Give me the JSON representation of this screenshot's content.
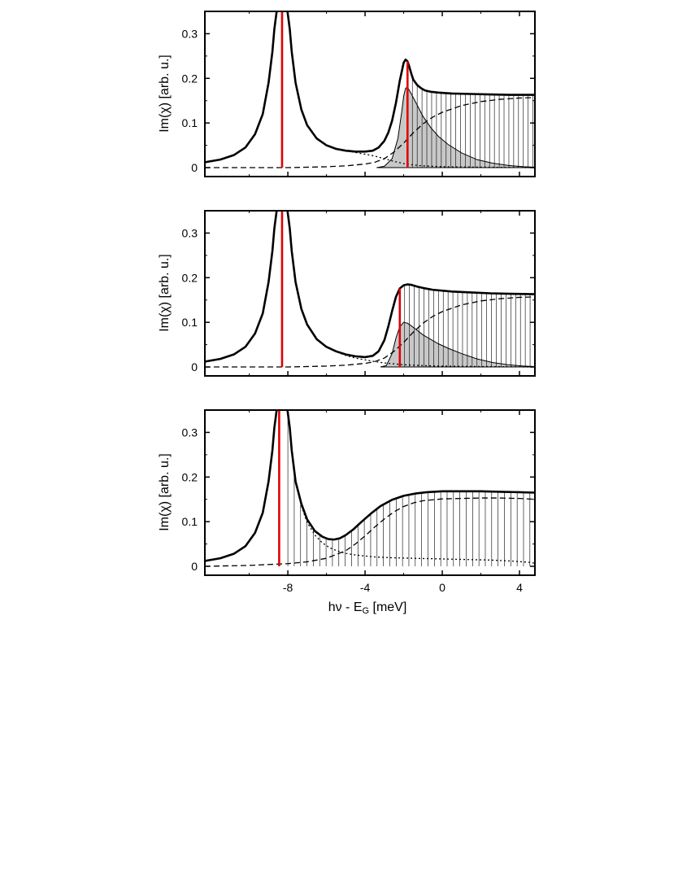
{
  "colors": {
    "line": "#000000",
    "marker": "#e00000",
    "fill": "#c8c8c8",
    "background": "#ffffff"
  },
  "chart_data": [
    {
      "type": "line",
      "panel": "top",
      "ylabel": "Im(χ) [arb. u.]",
      "xlabel": "",
      "xlim": [
        -12.3,
        4.8
      ],
      "ylim": [
        -0.02,
        0.35
      ],
      "yticks": [
        0,
        0.1,
        0.2,
        0.3
      ],
      "ytick_labels": [
        "0",
        "0.1",
        "0.2",
        "0.3"
      ],
      "xticks": [
        -8,
        -4,
        0,
        4
      ],
      "xtick_labels": [
        "",
        "",
        "",
        ""
      ],
      "red_lines": [
        -8.3,
        -1.8
      ],
      "comb_range": [
        -1.8,
        4.8
      ],
      "comb_step": 0.25,
      "series": [
        {
          "name": "total",
          "style": "thick",
          "x": [
            -12.3,
            -11.5,
            -10.8,
            -10.2,
            -9.7,
            -9.3,
            -9.0,
            -8.8,
            -8.7,
            -8.55,
            -8.05,
            -7.9,
            -7.8,
            -7.6,
            -7.3,
            -7.0,
            -6.5,
            -6.0,
            -5.5,
            -5.0,
            -4.5,
            -4.0,
            -3.6,
            -3.3,
            -3.0,
            -2.8,
            -2.6,
            -2.4,
            -2.2,
            -2.0,
            -1.9,
            -1.8,
            -1.7,
            -1.6,
            -1.5,
            -1.3,
            -1.1,
            -0.9,
            -0.6,
            -0.2,
            0.5,
            1.5,
            2.5,
            3.5,
            4.8
          ],
          "values": [
            0.012,
            0.018,
            0.028,
            0.045,
            0.075,
            0.12,
            0.19,
            0.26,
            0.31,
            0.36,
            0.36,
            0.31,
            0.26,
            0.19,
            0.13,
            0.095,
            0.065,
            0.05,
            0.042,
            0.038,
            0.036,
            0.036,
            0.038,
            0.045,
            0.06,
            0.078,
            0.105,
            0.145,
            0.195,
            0.235,
            0.242,
            0.238,
            0.225,
            0.21,
            0.197,
            0.185,
            0.178,
            0.173,
            0.17,
            0.168,
            0.166,
            0.165,
            0.164,
            0.163,
            0.163
          ]
        },
        {
          "name": "continuum",
          "style": "dashed",
          "x": [
            -12.3,
            -8,
            -6,
            -5,
            -4,
            -3.5,
            -3,
            -2.5,
            -2,
            -1.5,
            -1,
            -0.5,
            0,
            1,
            2,
            3,
            4,
            4.8
          ],
          "values": [
            0,
            0,
            0.002,
            0.004,
            0.008,
            0.012,
            0.02,
            0.035,
            0.055,
            0.078,
            0.098,
            0.113,
            0.124,
            0.139,
            0.148,
            0.153,
            0.156,
            0.157
          ]
        },
        {
          "name": "exciton",
          "style": "dotted",
          "x": [
            -12.3,
            -11.5,
            -10.8,
            -10.2,
            -9.7,
            -9.3,
            -9.0,
            -8.8,
            -8.7,
            -8.55,
            -8.05,
            -7.9,
            -7.8,
            -7.6,
            -7.3,
            -7.0,
            -6.5,
            -6.0,
            -5.5,
            -5.0,
            -4.5,
            -4.0,
            -3.5,
            -3.0,
            -2.5,
            -2.0,
            -1.5,
            -1.0,
            0,
            2,
            4.8
          ],
          "values": [
            0.012,
            0.018,
            0.028,
            0.045,
            0.075,
            0.12,
            0.19,
            0.26,
            0.31,
            0.36,
            0.36,
            0.31,
            0.26,
            0.19,
            0.13,
            0.095,
            0.066,
            0.051,
            0.043,
            0.038,
            0.034,
            0.03,
            0.026,
            0.02,
            0.014,
            0.009,
            0.006,
            0.004,
            0.002,
            0.001,
            0
          ]
        },
        {
          "name": "shaded",
          "style": "fill",
          "x": [
            -3.4,
            -3.0,
            -2.6,
            -2.3,
            -2.1,
            -2.0,
            -1.9,
            -1.8,
            -1.6,
            -1.3,
            -1.0,
            -0.6,
            -0.2,
            0.3,
            1.0,
            1.8,
            2.6,
            3.4,
            4.2,
            4.8
          ],
          "values": [
            0,
            0.003,
            0.02,
            0.065,
            0.125,
            0.16,
            0.178,
            0.18,
            0.165,
            0.14,
            0.115,
            0.09,
            0.07,
            0.052,
            0.033,
            0.018,
            0.01,
            0.005,
            0.002,
            0.001
          ]
        }
      ]
    },
    {
      "type": "line",
      "panel": "middle",
      "ylabel": "Im(χ) [arb. u.]",
      "xlabel": "",
      "xlim": [
        -12.3,
        4.8
      ],
      "ylim": [
        -0.02,
        0.35
      ],
      "yticks": [
        0,
        0.1,
        0.2,
        0.3
      ],
      "ytick_labels": [
        "0",
        "0.1",
        "0.2",
        "0.3"
      ],
      "xticks": [
        -8,
        -4,
        0,
        4
      ],
      "xtick_labels": [
        "",
        "",
        "",
        ""
      ],
      "red_lines": [
        -8.3,
        -2.2
      ],
      "comb_range": [
        -2.2,
        4.8
      ],
      "comb_step": 0.25,
      "series": [
        {
          "name": "total",
          "style": "thick",
          "x": [
            -12.3,
            -11.5,
            -10.8,
            -10.2,
            -9.7,
            -9.3,
            -9.0,
            -8.8,
            -8.7,
            -8.55,
            -8.05,
            -7.9,
            -7.8,
            -7.6,
            -7.3,
            -7.0,
            -6.5,
            -6.0,
            -5.5,
            -5.0,
            -4.5,
            -4.0,
            -3.6,
            -3.3,
            -3.0,
            -2.8,
            -2.6,
            -2.4,
            -2.2,
            -2.0,
            -1.8,
            -1.6,
            -1.3,
            -1.0,
            -0.5,
            0.5,
            1.5,
            2.5,
            3.5,
            4.8
          ],
          "values": [
            0.012,
            0.018,
            0.028,
            0.045,
            0.075,
            0.12,
            0.19,
            0.26,
            0.31,
            0.36,
            0.36,
            0.31,
            0.26,
            0.19,
            0.13,
            0.095,
            0.062,
            0.045,
            0.035,
            0.028,
            0.024,
            0.022,
            0.025,
            0.035,
            0.06,
            0.09,
            0.125,
            0.157,
            0.176,
            0.183,
            0.185,
            0.184,
            0.18,
            0.177,
            0.173,
            0.169,
            0.167,
            0.165,
            0.164,
            0.163
          ]
        },
        {
          "name": "continuum",
          "style": "dashed",
          "x": [
            -12.3,
            -8,
            -6,
            -5,
            -4,
            -3.5,
            -3,
            -2.5,
            -2,
            -1.5,
            -1,
            -0.5,
            0,
            1,
            2,
            3,
            4,
            4.8
          ],
          "values": [
            0,
            0,
            0.002,
            0.004,
            0.008,
            0.012,
            0.02,
            0.035,
            0.055,
            0.078,
            0.098,
            0.113,
            0.124,
            0.139,
            0.148,
            0.153,
            0.156,
            0.157
          ]
        },
        {
          "name": "exciton",
          "style": "dotted",
          "x": [
            -12.3,
            -11.5,
            -10.8,
            -10.2,
            -9.7,
            -9.3,
            -9.0,
            -8.8,
            -8.7,
            -8.55,
            -8.05,
            -7.9,
            -7.8,
            -7.6,
            -7.3,
            -7.0,
            -6.5,
            -6.0,
            -5.5,
            -5.0,
            -4.5,
            -4.0,
            -3.5,
            -3.0,
            -2.5,
            -2.0,
            -1.0,
            0,
            2,
            4.8
          ],
          "values": [
            0.012,
            0.018,
            0.028,
            0.045,
            0.075,
            0.12,
            0.19,
            0.26,
            0.31,
            0.36,
            0.36,
            0.31,
            0.26,
            0.19,
            0.13,
            0.095,
            0.062,
            0.045,
            0.034,
            0.026,
            0.02,
            0.016,
            0.012,
            0.009,
            0.007,
            0.005,
            0.003,
            0.002,
            0.001,
            0
          ]
        },
        {
          "name": "shaded",
          "style": "fill",
          "x": [
            -3.2,
            -2.9,
            -2.6,
            -2.4,
            -2.2,
            -2.0,
            -1.8,
            -1.6,
            -1.3,
            -1.0,
            -0.6,
            -0.2,
            0.3,
            1.0,
            1.8,
            2.6,
            3.4,
            4.2,
            4.8
          ],
          "values": [
            0,
            0.003,
            0.03,
            0.065,
            0.09,
            0.1,
            0.098,
            0.092,
            0.082,
            0.072,
            0.062,
            0.052,
            0.042,
            0.03,
            0.018,
            0.01,
            0.005,
            0.002,
            0.001
          ]
        }
      ]
    },
    {
      "type": "line",
      "panel": "bottom",
      "ylabel": "Im(χ) [arb. u.]",
      "xlabel": "hν - E_G [meV]",
      "xlabel_main": "hν - E",
      "xlabel_sub": "G",
      "xlabel_tail": " [meV]",
      "xlim": [
        -12.3,
        4.8
      ],
      "ylim": [
        -0.02,
        0.35
      ],
      "yticks": [
        0,
        0.1,
        0.2,
        0.3
      ],
      "ytick_labels": [
        "0",
        "0.1",
        "0.2",
        "0.3"
      ],
      "xticks": [
        -8,
        -4,
        0,
        4
      ],
      "xtick_labels": [
        "-8",
        "-4",
        "0",
        "4"
      ],
      "red_lines": [
        -8.45
      ],
      "comb_range": [
        -8.0,
        4.8
      ],
      "comb_step": 0.33,
      "series": [
        {
          "name": "total",
          "style": "thick",
          "x": [
            -12.3,
            -11.5,
            -10.8,
            -10.2,
            -9.7,
            -9.3,
            -9.0,
            -8.8,
            -8.7,
            -8.55,
            -8.05,
            -7.9,
            -7.8,
            -7.6,
            -7.3,
            -7.0,
            -6.6,
            -6.2,
            -5.9,
            -5.6,
            -5.3,
            -5.0,
            -4.6,
            -4.2,
            -3.7,
            -3.2,
            -2.6,
            -2.0,
            -1.4,
            -0.8,
            0,
            1.0,
            2.0,
            3.0,
            4.0,
            4.8
          ],
          "values": [
            0.012,
            0.018,
            0.028,
            0.045,
            0.075,
            0.12,
            0.19,
            0.26,
            0.31,
            0.36,
            0.36,
            0.31,
            0.26,
            0.19,
            0.14,
            0.105,
            0.079,
            0.066,
            0.061,
            0.06,
            0.063,
            0.07,
            0.083,
            0.099,
            0.118,
            0.135,
            0.149,
            0.158,
            0.163,
            0.166,
            0.168,
            0.168,
            0.168,
            0.167,
            0.166,
            0.165
          ]
        },
        {
          "name": "continuum",
          "style": "dashed",
          "x": [
            -12.3,
            -10,
            -8,
            -7,
            -6,
            -5,
            -4.5,
            -4,
            -3.5,
            -3,
            -2.5,
            -2,
            -1.5,
            -1,
            0,
            1,
            2,
            3,
            4,
            4.8
          ],
          "values": [
            0,
            0.002,
            0.006,
            0.01,
            0.018,
            0.035,
            0.05,
            0.068,
            0.088,
            0.106,
            0.122,
            0.134,
            0.142,
            0.147,
            0.151,
            0.152,
            0.153,
            0.153,
            0.152,
            0.15
          ]
        },
        {
          "name": "exciton",
          "style": "dotted",
          "x": [
            -12.3,
            -11.5,
            -10.8,
            -10.2,
            -9.7,
            -9.3,
            -9.0,
            -8.8,
            -8.7,
            -8.55,
            -8.05,
            -7.9,
            -7.8,
            -7.6,
            -7.3,
            -7.0,
            -6.6,
            -6.2,
            -5.8,
            -5.4,
            -5.0,
            -4.6,
            -4.2,
            -3.5,
            -2.5,
            -1.5,
            -0.5,
            0.5,
            1.5,
            2.5,
            3.5,
            4.5,
            4.8
          ],
          "values": [
            0.012,
            0.018,
            0.028,
            0.045,
            0.075,
            0.12,
            0.19,
            0.26,
            0.31,
            0.36,
            0.36,
            0.31,
            0.26,
            0.19,
            0.135,
            0.098,
            0.07,
            0.052,
            0.041,
            0.034,
            0.029,
            0.026,
            0.024,
            0.021,
            0.019,
            0.018,
            0.017,
            0.016,
            0.015,
            0.014,
            0.012,
            0.009,
            0.007
          ]
        }
      ]
    }
  ]
}
